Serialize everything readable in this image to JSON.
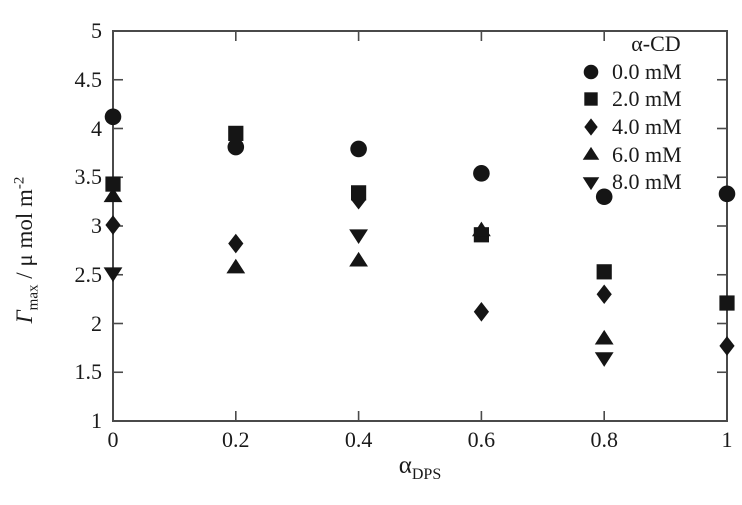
{
  "figure": {
    "background": "#ffffff"
  },
  "axes": {
    "x_title": {
      "symbol": "α",
      "subscript": "DPS"
    },
    "y_title": {
      "symbol": "Γ",
      "subscript": "max",
      "unit": " / μ mol m",
      "exponent": "-2"
    }
  },
  "legend": {
    "title": "α-CD",
    "items": [
      {
        "marker": "circle",
        "label": "0.0 mM"
      },
      {
        "marker": "square",
        "label": "2.0 mM"
      },
      {
        "marker": "diamond",
        "label": "4.0 mM"
      },
      {
        "marker": "triangle-up",
        "label": "6.0 mM"
      },
      {
        "marker": "triangle-down",
        "label": "8.0 mM"
      }
    ]
  },
  "chart_data": {
    "type": "scatter",
    "title": "",
    "xlabel": "α_DPS",
    "ylabel": "Γ_max / μ mol m^-2",
    "xlim": [
      0,
      1
    ],
    "ylim": [
      1,
      5
    ],
    "x_ticks": [
      0,
      0.2,
      0.4,
      0.6,
      0.8,
      1
    ],
    "x_tick_labels": [
      "0",
      "0.2",
      "0.4",
      "0.6",
      "0.8",
      "1"
    ],
    "y_ticks": [
      1,
      1.5,
      2,
      2.5,
      3,
      3.5,
      4,
      4.5,
      5
    ],
    "y_tick_labels": [
      "1",
      "1.5",
      "2",
      "2.5",
      "3",
      "3.5",
      "4",
      "4.5",
      "5"
    ],
    "grid": false,
    "legend_title": "α-CD",
    "legend_position": "inside-top-right",
    "marker_color": "#151515",
    "axis_color": "#4a4a4a",
    "series": [
      {
        "name": "0.0 mM",
        "marker": "circle",
        "points": [
          [
            0,
            4.12
          ],
          [
            0.2,
            3.81
          ],
          [
            0.4,
            3.79
          ],
          [
            0.6,
            3.54
          ],
          [
            0.8,
            3.3
          ],
          [
            1,
            3.33
          ]
        ]
      },
      {
        "name": "2.0 mM",
        "marker": "square",
        "points": [
          [
            0,
            3.43
          ],
          [
            0.2,
            3.95
          ],
          [
            0.4,
            3.34
          ],
          [
            0.6,
            2.91
          ],
          [
            0.8,
            2.53
          ],
          [
            1,
            2.21
          ]
        ]
      },
      {
        "name": "4.0 mM",
        "marker": "diamond",
        "points": [
          [
            0,
            3.01
          ],
          [
            0.2,
            2.82
          ],
          [
            0.4,
            3.27
          ],
          [
            0.6,
            2.12
          ],
          [
            0.8,
            2.3
          ],
          [
            1,
            1.77
          ]
        ]
      },
      {
        "name": "6.0 mM",
        "marker": "triangle-up",
        "points": [
          [
            0,
            3.3
          ],
          [
            0.2,
            2.57
          ],
          [
            0.4,
            2.64
          ],
          [
            0.6,
            2.95
          ],
          [
            0.8,
            1.84
          ]
        ]
      },
      {
        "name": "8.0 mM",
        "marker": "triangle-down",
        "points": [
          [
            0,
            2.52
          ],
          [
            0.4,
            2.91
          ],
          [
            0.8,
            1.65
          ]
        ]
      }
    ]
  }
}
